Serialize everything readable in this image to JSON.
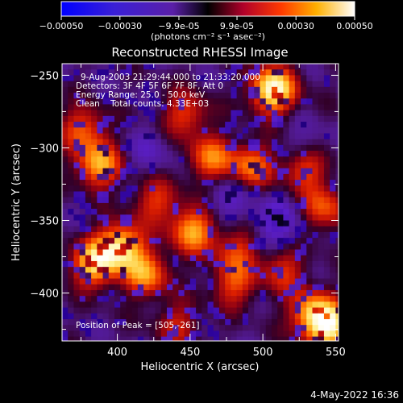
{
  "chart_data": {
    "type": "heatmap",
    "title": "Reconstructed RHESSI Image",
    "xlabel": "Heliocentric X (arcsec)",
    "ylabel": "Heliocentric Y (arcsec)",
    "xlim": [
      362,
      552
    ],
    "ylim": [
      -433,
      -242
    ],
    "x_ticks": [
      400,
      450,
      500,
      550
    ],
    "y_ticks": [
      -250,
      -300,
      -350,
      -400
    ],
    "colorbar": {
      "label": "(photons cm⁻² s⁻¹ asec⁻²)",
      "range": [
        -0.0005,
        0.0005
      ],
      "top_ticks": [
        "-0.00050",
        "-0.00030",
        "-9.9e-05",
        "9.9e-05",
        "0.00030",
        "0.00050"
      ],
      "colormap": "black-blue-purple-red-orange-yellow-white"
    },
    "annotations": [
      "9-Aug-2003 21:29:44.000 to 21:33:20.000",
      "Detectors: 3F 4F 5F 6F 7F 8F, Att 0",
      "Energy Range: 25.0 - 50.0 keV",
      "Clean    Total counts: 4.33E+03"
    ],
    "peak_label": "Position of Peak = [505,-261]",
    "peak": [
      505,
      -261
    ],
    "hotspots": [
      {
        "x": 505,
        "y": -258,
        "v": 1.0
      },
      {
        "x": 385,
        "y": -310,
        "v": 0.7
      },
      {
        "x": 400,
        "y": -366,
        "v": 0.85
      },
      {
        "x": 382,
        "y": -378,
        "v": 0.78
      },
      {
        "x": 418,
        "y": -385,
        "v": 0.62
      },
      {
        "x": 450,
        "y": -355,
        "v": 0.68
      },
      {
        "x": 462,
        "y": -305,
        "v": 0.55
      },
      {
        "x": 445,
        "y": -275,
        "v": 0.45
      },
      {
        "x": 490,
        "y": -310,
        "v": 0.55
      },
      {
        "x": 527,
        "y": -310,
        "v": 0.62
      },
      {
        "x": 540,
        "y": -340,
        "v": 0.5
      },
      {
        "x": 545,
        "y": -422,
        "v": 0.8
      },
      {
        "x": 532,
        "y": -412,
        "v": 0.7
      },
      {
        "x": 478,
        "y": -392,
        "v": 0.45
      },
      {
        "x": 480,
        "y": -368,
        "v": 0.4
      },
      {
        "x": 425,
        "y": -335,
        "v": 0.42
      },
      {
        "x": 375,
        "y": -285,
        "v": 0.5
      },
      {
        "x": 440,
        "y": -420,
        "v": 0.35
      },
      {
        "x": 512,
        "y": -382,
        "v": 0.4
      }
    ],
    "coldspots": [
      {
        "x": 508,
        "y": -350,
        "v": -0.4
      },
      {
        "x": 528,
        "y": -300,
        "v": -0.32
      },
      {
        "x": 475,
        "y": -335,
        "v": -0.25
      },
      {
        "x": 420,
        "y": -300,
        "v": -0.2
      }
    ]
  },
  "footer": {
    "timestamp": "4-May-2022 16:36"
  }
}
